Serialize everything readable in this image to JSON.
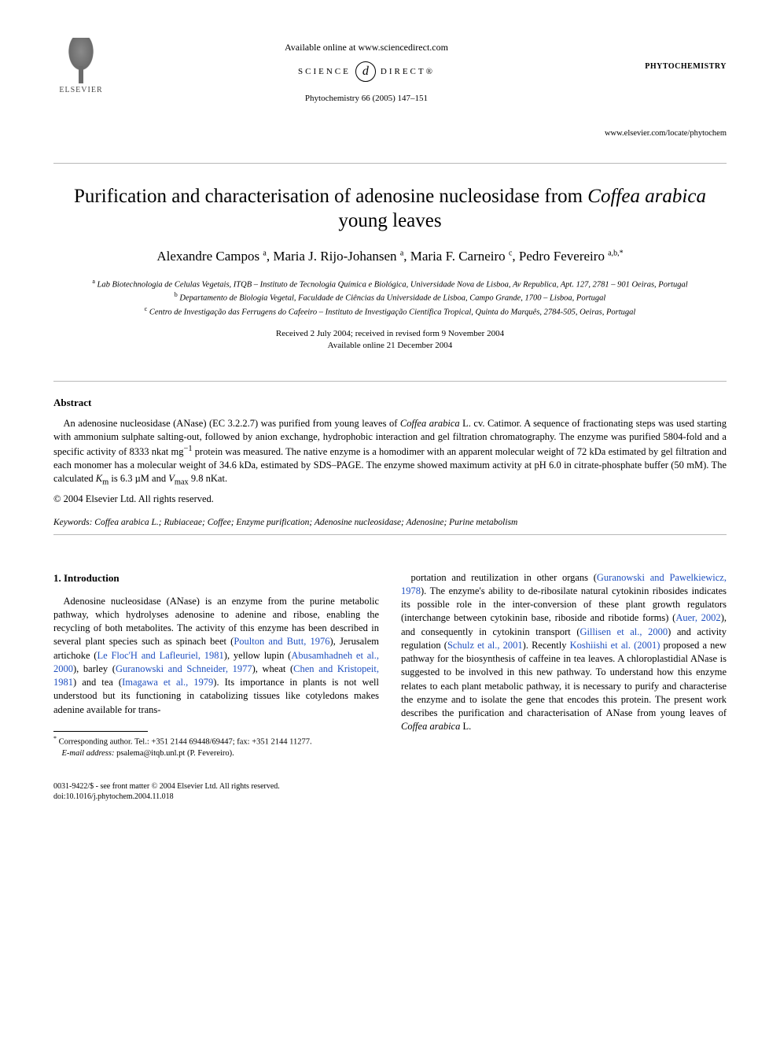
{
  "header": {
    "publisher": "ELSEVIER",
    "available_online": "Available online at www.sciencedirect.com",
    "sciencedirect_left": "SCIENCE",
    "sciencedirect_icon": "d",
    "sciencedirect_right": "DIRECT®",
    "journal_ref": "Phytochemistry 66 (2005) 147–151",
    "journal_name": "PHYTOCHEMISTRY",
    "locate_url": "www.elsevier.com/locate/phytochem"
  },
  "title_parts": {
    "pre": "Purification and characterisation of adenosine nucleosidase from ",
    "italic": "Coffea arabica",
    "post": " young leaves"
  },
  "authors_html": "Alexandre Campos <sup>a</sup>, Maria J. Rijo-Johansen <sup>a</sup>, Maria F. Carneiro <sup>c</sup>, Pedro Fevereiro <sup>a,b,*</sup>",
  "affiliations": [
    "<sup>a</sup> Lab Biotechnologia de Celulas Vegetais, ITQB – Instituto de Tecnologia Química e Biológica, Universidade Nova de Lisboa, Av Republica, Apt. 127, 2781 – 901 Oeiras, Portugal",
    "<sup>b</sup> Departamento de Biologia Vegetal, Faculdade de Ciências da Universidade de Lisboa, Campo Grande, 1700 – Lisboa, Portugal",
    "<sup>c</sup> Centro de Investigação das Ferrugens do Cafeeiro – Instituto de Investigação Científica Tropical, Quinta do Marquês, 2784-505, Oeiras, Portugal"
  ],
  "dates": {
    "received": "Received 2 July 2004; received in revised form 9 November 2004",
    "online": "Available online 21 December 2004"
  },
  "abstract": {
    "heading": "Abstract",
    "body_html": "An adenosine nucleosidase (ANase) (EC 3.2.2.7) was purified from young leaves of <em>Coffea arabica</em> L. cv. Catimor. A sequence of fractionating steps was used starting with ammonium sulphate salting-out, followed by anion exchange, hydrophobic interaction and gel filtration chromatography. The enzyme was purified 5804-fold and a specific activity of 8333 nkat mg<sup>−1</sup> protein was measured. The native enzyme is a homodimer with an apparent molecular weight of 72 kDa estimated by gel filtration and each monomer has a molecular weight of 34.6 kDa, estimated by SDS–PAGE. The enzyme showed maximum activity at pH 6.0 in citrate-phosphate buffer (50 mM). The calculated <em>K</em><sub>m</sub> is 6.3 µM and <em>V</em><sub>max</sub> 9.8 nKat.",
    "copyright": "© 2004 Elsevier Ltd. All rights reserved."
  },
  "keywords_html": "<span class='kw-label'>Keywords:</span> <em>Coffea arabica</em> L.; Rubiaceae; Coffee; Enzyme purification; Adenosine nucleosidase; Adenosine; Purine metabolism",
  "section1": {
    "heading": "1. Introduction",
    "col1_html": "Adenosine nucleosidase (ANase) is an enzyme from the purine metabolic pathway, which hydrolyses adenosine to adenine and ribose, enabling the recycling of both metabolites. The activity of this enzyme has been described in several plant species such as spinach beet (<a href='#'>Poulton and Butt, 1976</a>), Jerusalem artichoke (<a href='#'>Le Floc'H and Lafleuriel, 1981</a>), yellow lupin (<a href='#'>Abusamhadneh et al., 2000</a>), barley (<a href='#'>Guranowski and Schneider, 1977</a>), wheat (<a href='#'>Chen and Kristopeit, 1981</a>) and tea (<a href='#'>Imagawa et al., 1979</a>). Its importance in plants is not well understood but its functioning in catabolizing tissues like cotyledons makes adenine available for trans-",
    "col2_html": "portation and reutilization in other organs (<a href='#'>Guranowski and Pawelkiewicz, 1978</a>). The enzyme's ability to de-ribosilate natural cytokinin ribosides indicates its possible role in the inter-conversion of these plant growth regulators (interchange between cytokinin base, riboside and ribotide forms) (<a href='#'>Auer, 2002</a>), and consequently in cytokinin transport (<a href='#'>Gillisen et al., 2000</a>) and activity regulation (<a href='#'>Schulz et al., 2001</a>). Recently <a href='#'>Koshiishi et al. (2001)</a> proposed a new pathway for the biosynthesis of caffeine in tea leaves. A chloroplastidial ANase is suggested to be involved in this new pathway. To understand how this enzyme relates to each plant metabolic pathway, it is necessary to purify and characterise the enzyme and to isolate the gene that encodes this protein. The present work describes the purification and characterisation of ANase from young leaves of <em>Coffea arabica</em> L."
  },
  "footnotes": {
    "corresponding": "Corresponding author. Tel.: +351 2144 69448/69447; fax: +351 2144 11277.",
    "email_label": "E-mail address:",
    "email": "psalema@itqb.unl.pt",
    "email_attrib": "(P. Fevereiro)."
  },
  "bottom": {
    "issn": "0031-9422/$ - see front matter © 2004 Elsevier Ltd. All rights reserved.",
    "doi": "doi:10.1016/j.phytochem.2004.11.018"
  },
  "colors": {
    "link": "#2050c0",
    "rule": "#b8b8b8",
    "text": "#000000"
  }
}
